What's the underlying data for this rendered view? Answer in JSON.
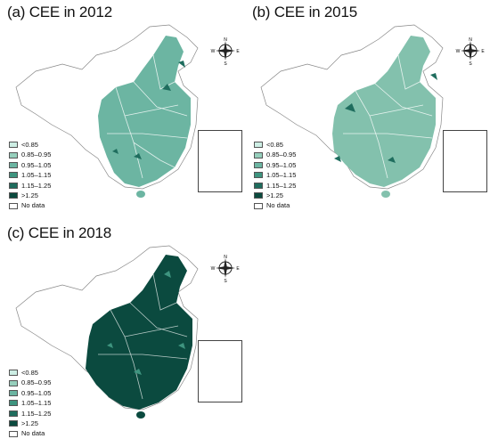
{
  "legend": {
    "classes": [
      {
        "label": "<0.85",
        "color": "#cdeee4"
      },
      {
        "label": "0.85–0.95",
        "color": "#96cfbc"
      },
      {
        "label": "0.95–1.05",
        "color": "#6cb5a2"
      },
      {
        "label": "1.05–1.15",
        "color": "#3e947f"
      },
      {
        "label": "1.15–1.25",
        "color": "#1f6d5e"
      },
      {
        "label": ">1.25",
        "color": "#0b4a3f"
      },
      {
        "label": "No data",
        "color": "#ffffff"
      }
    ]
  },
  "compass": {
    "n": "N",
    "s": "S",
    "e": "E",
    "w": "W"
  },
  "panels": [
    {
      "title": "(a) CEE in 2012",
      "dominant_class": "0.95–1.05",
      "fill": "#6cb5a2",
      "accent": "#1f6d5e"
    },
    {
      "title": "(b) CEE in 2015",
      "dominant_class": "0.95–1.05",
      "fill": "#83c1ad",
      "accent": "#1f6d5e"
    },
    {
      "title": "(c) CEE in 2018",
      "dominant_class": ">1.25",
      "fill": "#0b4a3f",
      "accent": "#3e947f"
    }
  ]
}
